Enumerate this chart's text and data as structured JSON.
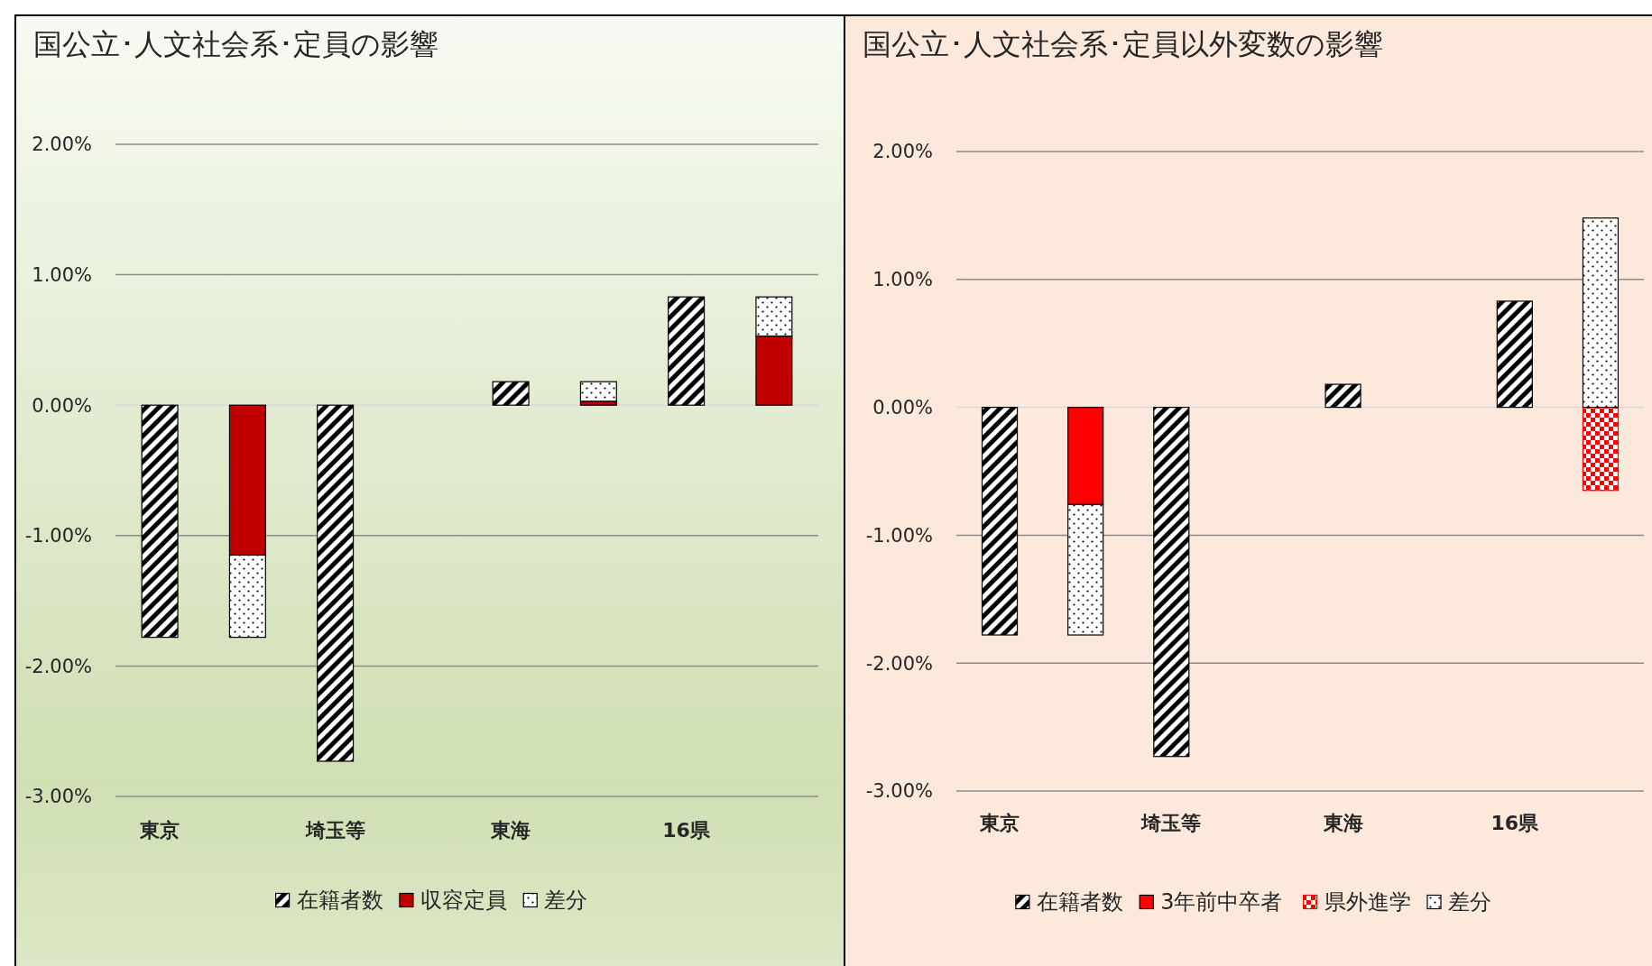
{
  "chart_data": [
    {
      "type": "bar",
      "title": "国公立･人文社会系･定員の影響",
      "stacked": true,
      "categories": [
        "東京",
        null,
        "埼玉等",
        null,
        "東海",
        null,
        "16県",
        null
      ],
      "series": [
        {
          "name": "在籍者数",
          "color": "#000000",
          "values": [
            -1.78,
            null,
            -2.73,
            null,
            0.18,
            null,
            0.83,
            null
          ]
        },
        {
          "name": "収容定員",
          "color": "#c00000",
          "values": [
            null,
            -1.15,
            null,
            0,
            null,
            0.03,
            null,
            0.53
          ]
        },
        {
          "name": "差分",
          "color": "#000000",
          "values": [
            null,
            -0.63,
            null,
            0,
            null,
            0.15,
            null,
            0.3
          ]
        }
      ],
      "ylim": [
        -3,
        2
      ],
      "yticks": [
        {
          "value": -3,
          "label": "-3.00%"
        },
        {
          "value": -2,
          "label": "-2.00%"
        },
        {
          "value": -1,
          "label": "-1.00%"
        },
        {
          "value": 0,
          "label": "0.00%"
        },
        {
          "value": 1,
          "label": "1.00%"
        },
        {
          "value": 2,
          "label": "2.00%"
        }
      ],
      "grid": "y",
      "legend": "bottom"
    },
    {
      "type": "bar",
      "title": "国公立･人文社会系･定員以外変数の影響",
      "stacked": true,
      "categories": [
        "東京",
        null,
        "埼玉等",
        null,
        "東海",
        null,
        "16県",
        null
      ],
      "series": [
        {
          "name": "在籍者数",
          "color": "#000000",
          "values": [
            -1.78,
            null,
            -2.73,
            null,
            0.18,
            null,
            0.83,
            null
          ]
        },
        {
          "name": "3年前中卒者",
          "color": "#ff0000",
          "values": [
            null,
            -0.76,
            null,
            null,
            null,
            null,
            null,
            null
          ]
        },
        {
          "name": "県外進学",
          "color": "#ff0000",
          "values": [
            null,
            null,
            null,
            null,
            null,
            null,
            null,
            -0.65
          ]
        },
        {
          "name": "差分",
          "color": "#000000",
          "values": [
            null,
            -1.02,
            null,
            null,
            null,
            null,
            null,
            1.48
          ]
        }
      ],
      "ylim": [
        -3,
        2
      ],
      "yticks": [
        {
          "value": -3,
          "label": "-3.00%"
        },
        {
          "value": -2,
          "label": "-2.00%"
        },
        {
          "value": -1,
          "label": "-1.00%"
        },
        {
          "value": 0,
          "label": "0.00%"
        },
        {
          "value": 1,
          "label": "1.00%"
        },
        {
          "value": 2,
          "label": "2.00%"
        }
      ],
      "grid": "y",
      "legend": "bottom"
    }
  ]
}
